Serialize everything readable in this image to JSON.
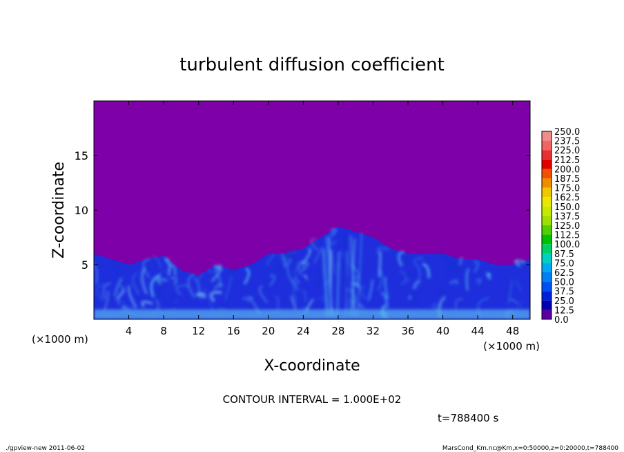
{
  "chart_data": {
    "type": "heatmap",
    "title": "turbulent diffusion coefficient",
    "xlabel": "X-coordinate",
    "ylabel": "Z-coordinate",
    "x_unit": "(×1000 m)",
    "x_unit_right": "(×1000 m)",
    "xlim": [
      0,
      50
    ],
    "ylim": [
      0,
      20
    ],
    "x_ticks": [
      4,
      8,
      12,
      16,
      20,
      24,
      28,
      32,
      36,
      40,
      44,
      48
    ],
    "y_ticks": [
      5,
      10,
      15
    ],
    "colorbar": {
      "levels": [
        "250.0",
        "237.5",
        "225.0",
        "212.5",
        "200.0",
        "187.5",
        "175.0",
        "162.5",
        "150.0",
        "137.5",
        "125.0",
        "112.5",
        "100.0",
        "87.5",
        "75.0",
        "62.5",
        "50.0",
        "37.5",
        "25.0",
        "12.5",
        "0.0"
      ],
      "colors": [
        "#f08c8c",
        "#f06464",
        "#e83030",
        "#e00000",
        "#f05000",
        "#f08c00",
        "#f0c800",
        "#e8e800",
        "#c8e800",
        "#a0e000",
        "#50d000",
        "#00c000",
        "#00d060",
        "#00d0c0",
        "#00a8f0",
        "#0080f0",
        "#0050f0",
        "#0020d8",
        "#0000b0",
        "#5a00a0"
      ]
    },
    "background_color": "#7d00a8",
    "turbulent_layer_top_approx": [
      [
        0,
        6
      ],
      [
        2,
        5.5
      ],
      [
        4,
        5
      ],
      [
        6,
        5.5
      ],
      [
        8,
        5.8
      ],
      [
        10,
        4.5
      ],
      [
        12,
        4
      ],
      [
        14,
        5
      ],
      [
        16,
        4.5
      ],
      [
        18,
        5
      ],
      [
        20,
        6
      ],
      [
        22,
        6
      ],
      [
        24,
        6.5
      ],
      [
        26,
        7.5
      ],
      [
        28,
        8.5
      ],
      [
        30,
        8
      ],
      [
        32,
        7.5
      ],
      [
        34,
        6.5
      ],
      [
        36,
        6
      ],
      [
        38,
        6
      ],
      [
        40,
        6
      ],
      [
        42,
        5.5
      ],
      [
        44,
        5.5
      ],
      [
        46,
        5
      ],
      [
        48,
        5
      ],
      [
        50,
        5.5
      ]
    ],
    "contour_interval": "CONTOUR INTERVAL = 1.000E+02",
    "time_label": "t=788400  s"
  },
  "footer": {
    "left": "./gpview-new   2011-06-02",
    "right": "MarsCond_Km.nc@Km,x=0:50000,z=0:20000,t=788400"
  }
}
